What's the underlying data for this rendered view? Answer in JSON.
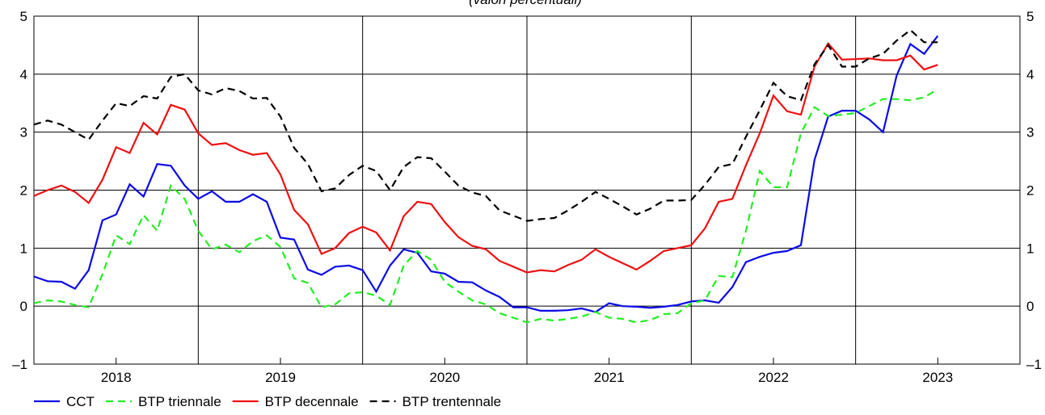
{
  "chart_data": {
    "type": "line",
    "subtitle": "(valori percentuali)",
    "x": [
      2017.5,
      2017.583,
      2017.667,
      2017.75,
      2017.833,
      2017.917,
      2018,
      2018.083,
      2018.167,
      2018.25,
      2018.333,
      2018.417,
      2018.5,
      2018.583,
      2018.667,
      2018.75,
      2018.833,
      2018.917,
      2019,
      2019.083,
      2019.167,
      2019.25,
      2019.333,
      2019.417,
      2019.5,
      2019.583,
      2019.667,
      2019.75,
      2019.833,
      2019.917,
      2020,
      2020.083,
      2020.167,
      2020.25,
      2020.333,
      2020.417,
      2020.5,
      2020.583,
      2020.667,
      2020.75,
      2020.833,
      2020.917,
      2021,
      2021.083,
      2021.167,
      2021.25,
      2021.333,
      2021.417,
      2021.5,
      2021.583,
      2021.667,
      2021.75,
      2021.833,
      2021.917,
      2022,
      2022.083,
      2022.167,
      2022.25,
      2022.333,
      2022.417,
      2022.5,
      2022.583,
      2022.667,
      2022.75,
      2022.833,
      2022.917,
      2023
    ],
    "series": [
      {
        "name": "CCT",
        "color": "#0a0ae6",
        "dashed": false,
        "values": [
          0.51,
          0.43,
          0.42,
          0.3,
          0.62,
          1.48,
          1.58,
          2.1,
          1.89,
          2.45,
          2.42,
          2.08,
          1.85,
          1.98,
          1.8,
          1.8,
          1.93,
          1.8,
          1.18,
          1.15,
          0.63,
          0.54,
          0.68,
          0.7,
          0.62,
          0.25,
          0.7,
          0.98,
          0.92,
          0.6,
          0.56,
          0.42,
          0.41,
          0.27,
          0.16,
          -0.02,
          -0.02,
          -0.08,
          -0.08,
          -0.07,
          -0.04,
          -0.1,
          0.05,
          0.0,
          -0.01,
          -0.03,
          -0.01,
          0.02,
          0.08,
          0.1,
          0.06,
          0.33,
          0.76,
          0.85,
          0.92,
          0.95,
          1.05,
          2.52,
          3.27,
          3.37,
          3.37,
          3.22,
          3.0,
          3.98,
          4.52,
          4.35,
          4.66
        ]
      },
      {
        "name": "BTP triennale",
        "color": "#22ee22",
        "dashed": true,
        "values": [
          0.05,
          0.1,
          0.08,
          0.02,
          -0.02,
          0.55,
          1.22,
          1.07,
          1.57,
          1.3,
          2.08,
          1.85,
          1.3,
          0.98,
          1.06,
          0.93,
          1.12,
          1.22,
          1.02,
          0.48,
          0.4,
          -0.02,
          0.03,
          0.22,
          0.24,
          0.18,
          0.02,
          0.7,
          0.95,
          0.8,
          0.42,
          0.25,
          0.1,
          0.03,
          -0.12,
          -0.2,
          -0.28,
          -0.22,
          -0.25,
          -0.22,
          -0.18,
          -0.1,
          -0.2,
          -0.22,
          -0.28,
          -0.24,
          -0.14,
          -0.12,
          0.05,
          0.1,
          0.52,
          0.5,
          1.3,
          2.33,
          2.05,
          2.05,
          2.98,
          3.43,
          3.28,
          3.3,
          3.33,
          3.45,
          3.57,
          3.57,
          3.55,
          3.6,
          3.74
        ]
      },
      {
        "name": "BTP decennale",
        "color": "#ee1111",
        "dashed": false,
        "values": [
          1.9,
          2.0,
          2.08,
          1.97,
          1.78,
          2.18,
          2.74,
          2.64,
          3.16,
          2.96,
          3.47,
          3.39,
          2.98,
          2.78,
          2.81,
          2.69,
          2.61,
          2.64,
          2.27,
          1.66,
          1.41,
          0.9,
          1.0,
          1.26,
          1.37,
          1.27,
          0.96,
          1.55,
          1.8,
          1.76,
          1.45,
          1.19,
          1.04,
          0.98,
          0.78,
          0.68,
          0.58,
          0.62,
          0.6,
          0.71,
          0.8,
          0.98,
          0.85,
          0.74,
          0.63,
          0.78,
          0.95,
          1.0,
          1.05,
          1.34,
          1.8,
          1.85,
          2.43,
          2.98,
          3.63,
          3.36,
          3.3,
          4.13,
          4.53,
          4.25,
          4.26,
          4.27,
          4.24,
          4.24,
          4.32,
          4.08,
          4.16
        ]
      },
      {
        "name": "BTP trentennale",
        "color": "#000000",
        "dashed": true,
        "values": [
          3.13,
          3.2,
          3.13,
          3.0,
          2.87,
          3.2,
          3.5,
          3.45,
          3.62,
          3.58,
          3.95,
          4.0,
          3.72,
          3.65,
          3.76,
          3.71,
          3.58,
          3.59,
          3.27,
          2.73,
          2.45,
          1.98,
          2.03,
          2.26,
          2.42,
          2.33,
          2.0,
          2.4,
          2.57,
          2.55,
          2.32,
          2.08,
          1.96,
          1.9,
          1.65,
          1.56,
          1.47,
          1.5,
          1.52,
          1.65,
          1.8,
          1.97,
          1.85,
          1.72,
          1.58,
          1.68,
          1.82,
          1.82,
          1.83,
          2.09,
          2.4,
          2.45,
          2.92,
          3.38,
          3.85,
          3.62,
          3.55,
          4.17,
          4.5,
          4.13,
          4.13,
          4.27,
          4.35,
          4.58,
          4.76,
          4.55,
          4.55
        ]
      }
    ],
    "xlim": [
      2017.5,
      2023.5
    ],
    "xticks": [
      2018,
      2019,
      2020,
      2021,
      2022,
      2023
    ],
    "x_grid_lines": [
      2018.5,
      2019.5,
      2020.5,
      2021.5,
      2022.5
    ],
    "ylim": [
      -1,
      5
    ],
    "yticks": [
      {
        "value": -1,
        "label": "–1"
      },
      0,
      1,
      2,
      3,
      4,
      5
    ],
    "grid": true,
    "legend": "bottom"
  }
}
